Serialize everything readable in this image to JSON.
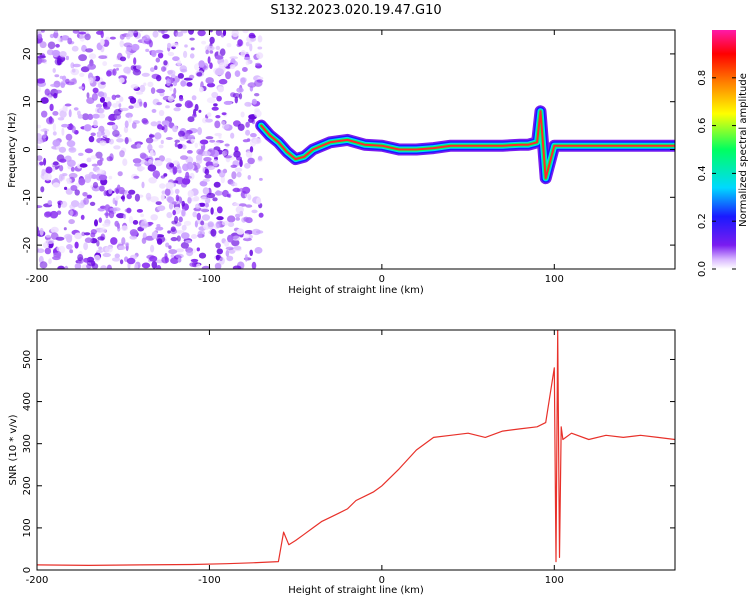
{
  "title": "S132.2023.020.19.47.G10",
  "chart_data": [
    {
      "type": "heatmap",
      "xlabel": "Height of straight line (km)",
      "ylabel": "Frequency (Hz)",
      "xlim": [
        -200,
        170
      ],
      "ylim": [
        -25,
        25
      ],
      "x_ticks": [
        -200,
        -100,
        0,
        100
      ],
      "y_ticks": [
        -20,
        -10,
        0,
        10,
        20
      ],
      "colorbar": {
        "label": "Normalized spectral amplitude",
        "range": [
          0,
          1
        ],
        "ticks": [
          0.0,
          0.2,
          0.4,
          0.6,
          0.8
        ],
        "colors": [
          "#ffffff",
          "#c77dff",
          "#7a1cf0",
          "#1a1aff",
          "#00d9ff",
          "#00ff60",
          "#ffff00",
          "#ff8000",
          "#ff0000",
          "#ff1aa8"
        ]
      },
      "noise_region_x": [
        -200,
        -70
      ],
      "signal_track": {
        "x": [
          -70,
          -65,
          -60,
          -55,
          -50,
          -45,
          -40,
          -30,
          -20,
          -10,
          0,
          10,
          20,
          30,
          40,
          50,
          60,
          70,
          80,
          85,
          90,
          92,
          95,
          100,
          110,
          120,
          130,
          140,
          150,
          160,
          170
        ],
        "freq": [
          5,
          3,
          1.5,
          -0.5,
          -2,
          -1.5,
          0,
          1.5,
          2,
          1,
          0.8,
          0,
          0,
          0.3,
          0.8,
          0.8,
          0.8,
          0.8,
          1,
          1,
          1.5,
          8,
          -6,
          0.8,
          0.8,
          0.8,
          0.8,
          0.8,
          0.8,
          0.8,
          0.8
        ]
      }
    },
    {
      "type": "line",
      "xlabel": "Height of straight line (km)",
      "ylabel": "SNR (10 * v/v)",
      "xlim": [
        -200,
        170
      ],
      "ylim": [
        0,
        570
      ],
      "x_ticks": [
        -200,
        -100,
        0,
        100
      ],
      "y_ticks": [
        0,
        100,
        200,
        300,
        400,
        500
      ],
      "series": [
        {
          "color": "#e8312a",
          "x": [
            -200,
            -170,
            -140,
            -110,
            -90,
            -75,
            -60,
            -57,
            -54,
            -50,
            -45,
            -40,
            -35,
            -30,
            -25,
            -20,
            -15,
            -10,
            -5,
            0,
            10,
            20,
            30,
            40,
            50,
            60,
            70,
            80,
            90,
            95,
            100,
            101,
            102,
            103,
            104,
            105,
            110,
            120,
            130,
            140,
            150,
            160,
            170
          ],
          "y": [
            12,
            11,
            12,
            13,
            15,
            17,
            20,
            90,
            60,
            70,
            85,
            100,
            115,
            125,
            135,
            145,
            165,
            175,
            185,
            200,
            240,
            285,
            315,
            320,
            325,
            315,
            330,
            335,
            340,
            350,
            480,
            20,
            570,
            30,
            340,
            310,
            325,
            310,
            320,
            315,
            320,
            315,
            310
          ]
        }
      ]
    }
  ]
}
